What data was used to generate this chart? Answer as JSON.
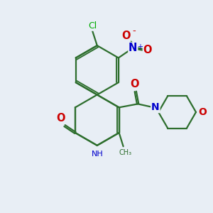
{
  "bg_color": "#e8eef5",
  "bond_color": "#2d6e2d",
  "bond_width": 1.6,
  "atom_colors": {
    "N": "#0000cc",
    "O": "#cc0000",
    "Cl": "#00aa00"
  },
  "font_size": 8.5
}
